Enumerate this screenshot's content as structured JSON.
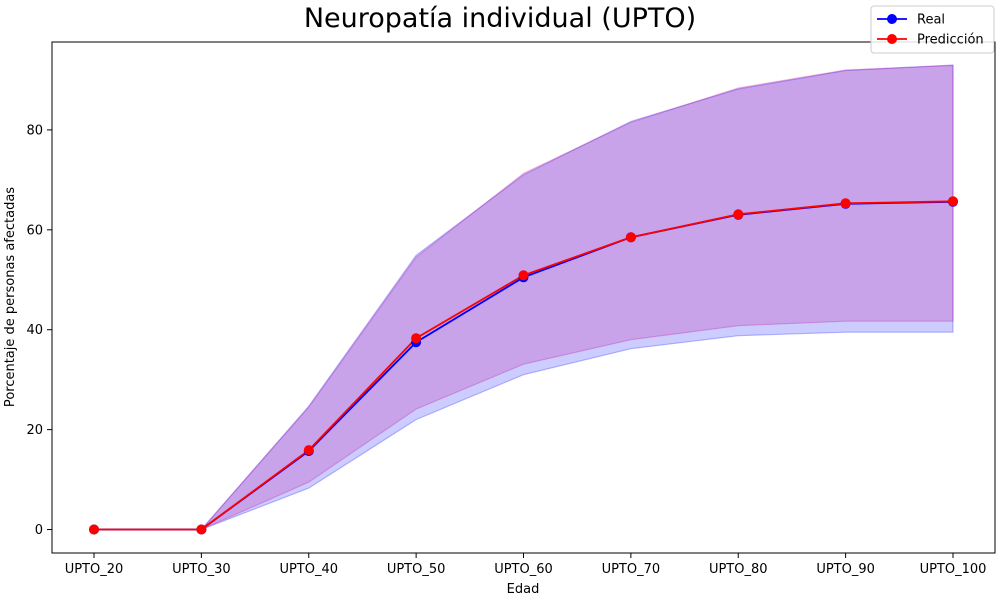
{
  "chart_data": {
    "type": "line",
    "title": "Neuropatía individual (UPTO)",
    "xlabel": "Edad",
    "ylabel": "Porcentaje de personas afectadas",
    "categories": [
      "UPTO_20",
      "UPTO_30",
      "UPTO_40",
      "UPTO_50",
      "UPTO_60",
      "UPTO_70",
      "UPTO_80",
      "UPTO_90",
      "UPTO_100"
    ],
    "ylim": [
      -4.7,
      97.6
    ],
    "yticks": [
      0,
      20,
      40,
      60,
      80
    ],
    "grid": false,
    "legend_position": "top-right",
    "series": [
      {
        "name": "Real",
        "color": "#0000ff",
        "band_color": "#0000ff",
        "values": [
          0,
          0,
          15.7,
          37.5,
          50.5,
          58.5,
          63.0,
          65.2,
          65.6
        ],
        "lower": [
          0,
          0,
          8.3,
          22.0,
          31.0,
          36.2,
          38.8,
          39.5,
          39.5
        ],
        "upper": [
          0,
          0,
          24.7,
          54.9,
          71.0,
          81.7,
          88.2,
          91.9,
          93.0
        ]
      },
      {
        "name": "Predicción",
        "color": "#ff0000",
        "band_color": "#c00090",
        "values": [
          0,
          0,
          15.9,
          38.3,
          50.9,
          58.5,
          63.1,
          65.3,
          65.7
        ],
        "lower": [
          0,
          0,
          9.5,
          24.1,
          33.1,
          38.0,
          40.8,
          41.7,
          41.7
        ],
        "upper": [
          0,
          0,
          24.5,
          54.5,
          71.3,
          81.5,
          88.4,
          92.0,
          92.9
        ]
      }
    ]
  }
}
